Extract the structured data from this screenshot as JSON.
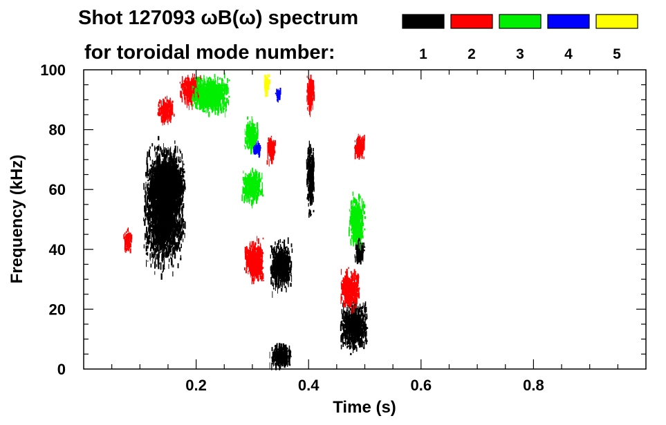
{
  "chart_data": {
    "type": "scatter",
    "title": "Shot 127093 ωB(ω) spectrum",
    "subtitle": "for toroidal mode number:",
    "xlabel": "Time (s)",
    "ylabel": "Frequency (kHz)",
    "xlim": [
      0.0,
      1.0
    ],
    "ylim": [
      0,
      100
    ],
    "x_ticks": [
      0.2,
      0.4,
      0.6,
      0.8
    ],
    "x_tick_labels": [
      "0.2",
      "0.4",
      "0.6",
      "0.8"
    ],
    "y_ticks": [
      0,
      20,
      40,
      60,
      80,
      100
    ],
    "y_tick_labels": [
      "0",
      "20",
      "40",
      "60",
      "80",
      "100"
    ],
    "legend": [
      {
        "label": "1",
        "color": "#000000"
      },
      {
        "label": "2",
        "color": "#ff0000"
      },
      {
        "label": "3",
        "color": "#00ee00"
      },
      {
        "label": "4",
        "color": "#0000ff"
      },
      {
        "label": "5",
        "color": "#ffff00"
      }
    ],
    "series": [
      {
        "name": "n=1",
        "color": "#000000",
        "regions": [
          {
            "t0": 0.105,
            "t1": 0.18,
            "f0": 30,
            "f1": 80
          },
          {
            "t0": 0.12,
            "t1": 0.18,
            "f0": 55,
            "f1": 72
          },
          {
            "t0": 0.33,
            "t1": 0.37,
            "f0": 25,
            "f1": 45
          },
          {
            "t0": 0.33,
            "t1": 0.37,
            "f0": 0,
            "f1": 10
          },
          {
            "t0": 0.395,
            "t1": 0.41,
            "f0": 50,
            "f1": 80
          },
          {
            "t0": 0.455,
            "t1": 0.505,
            "f0": 5,
            "f1": 25
          },
          {
            "t0": 0.48,
            "t1": 0.5,
            "f0": 35,
            "f1": 45
          }
        ]
      },
      {
        "name": "n=2",
        "color": "#ff0000",
        "regions": [
          {
            "t0": 0.07,
            "t1": 0.085,
            "f0": 40,
            "f1": 48
          },
          {
            "t0": 0.13,
            "t1": 0.16,
            "f0": 82,
            "f1": 92
          },
          {
            "t0": 0.17,
            "t1": 0.21,
            "f0": 88,
            "f1": 100
          },
          {
            "t0": 0.285,
            "t1": 0.32,
            "f0": 28,
            "f1": 45
          },
          {
            "t0": 0.325,
            "t1": 0.34,
            "f0": 68,
            "f1": 80
          },
          {
            "t0": 0.395,
            "t1": 0.41,
            "f0": 85,
            "f1": 100
          },
          {
            "t0": 0.455,
            "t1": 0.49,
            "f0": 20,
            "f1": 35
          },
          {
            "t0": 0.48,
            "t1": 0.5,
            "f0": 70,
            "f1": 80
          }
        ]
      },
      {
        "name": "n=3",
        "color": "#00ee00",
        "regions": [
          {
            "t0": 0.19,
            "t1": 0.26,
            "f0": 85,
            "f1": 100
          },
          {
            "t0": 0.28,
            "t1": 0.32,
            "f0": 55,
            "f1": 68
          },
          {
            "t0": 0.285,
            "t1": 0.31,
            "f0": 73,
            "f1": 85
          },
          {
            "t0": 0.47,
            "t1": 0.5,
            "f0": 40,
            "f1": 60
          }
        ]
      },
      {
        "name": "n=4",
        "color": "#0000ff",
        "regions": [
          {
            "t0": 0.3,
            "t1": 0.315,
            "f0": 72,
            "f1": 77
          },
          {
            "t0": 0.34,
            "t1": 0.35,
            "f0": 90,
            "f1": 95
          }
        ]
      },
      {
        "name": "n=5",
        "color": "#ffff00",
        "regions": [
          {
            "t0": 0.32,
            "t1": 0.33,
            "f0": 92,
            "f1": 100
          }
        ]
      }
    ]
  }
}
